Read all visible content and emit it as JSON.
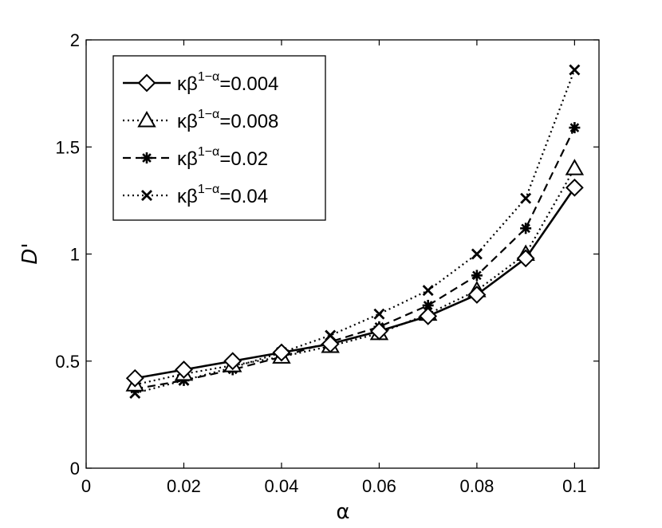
{
  "chart_data": {
    "type": "line",
    "xlabel": "α",
    "ylabel": "D'",
    "xlim": [
      0,
      0.105
    ],
    "ylim": [
      0,
      2
    ],
    "xticks": [
      "0",
      "0.02",
      "0.04",
      "0.06",
      "0.08",
      "0.1"
    ],
    "yticks": [
      "0",
      "0.5",
      "1",
      "1.5",
      "2"
    ],
    "grid": false,
    "legend_position": "top-left",
    "x": [
      0.01,
      0.02,
      0.03,
      0.04,
      0.05,
      0.06,
      0.07,
      0.08,
      0.09,
      0.1
    ],
    "series": [
      {
        "name": "κβ1−α=0.004",
        "label_base": "κβ",
        "label_sup": "1−α",
        "label_tail": "=0.004",
        "marker": "diamond",
        "dash": "solid",
        "values": [
          0.42,
          0.46,
          0.5,
          0.54,
          0.58,
          0.64,
          0.71,
          0.81,
          0.98,
          1.31
        ]
      },
      {
        "name": "κβ1−α=0.008",
        "label_base": "κβ",
        "label_sup": "1−α",
        "label_tail": "=0.008",
        "marker": "triangle",
        "dash": "dashdot",
        "values": [
          0.39,
          0.44,
          0.48,
          0.52,
          0.57,
          0.63,
          0.72,
          0.83,
          1.0,
          1.4
        ]
      },
      {
        "name": "κβ1−α=0.02",
        "label_base": "κβ",
        "label_sup": "1−α",
        "label_tail": "=0.02",
        "marker": "asterisk",
        "dash": "dashed",
        "values": [
          0.37,
          0.41,
          0.46,
          0.52,
          0.59,
          0.66,
          0.76,
          0.9,
          1.12,
          1.59
        ]
      },
      {
        "name": "κβ1−α=0.04",
        "label_base": "κβ",
        "label_sup": "1−α",
        "label_tail": "=0.04",
        "marker": "cross",
        "dash": "dotted",
        "values": [
          0.35,
          0.41,
          0.47,
          0.54,
          0.62,
          0.72,
          0.83,
          1.0,
          1.26,
          1.86
        ]
      }
    ]
  }
}
